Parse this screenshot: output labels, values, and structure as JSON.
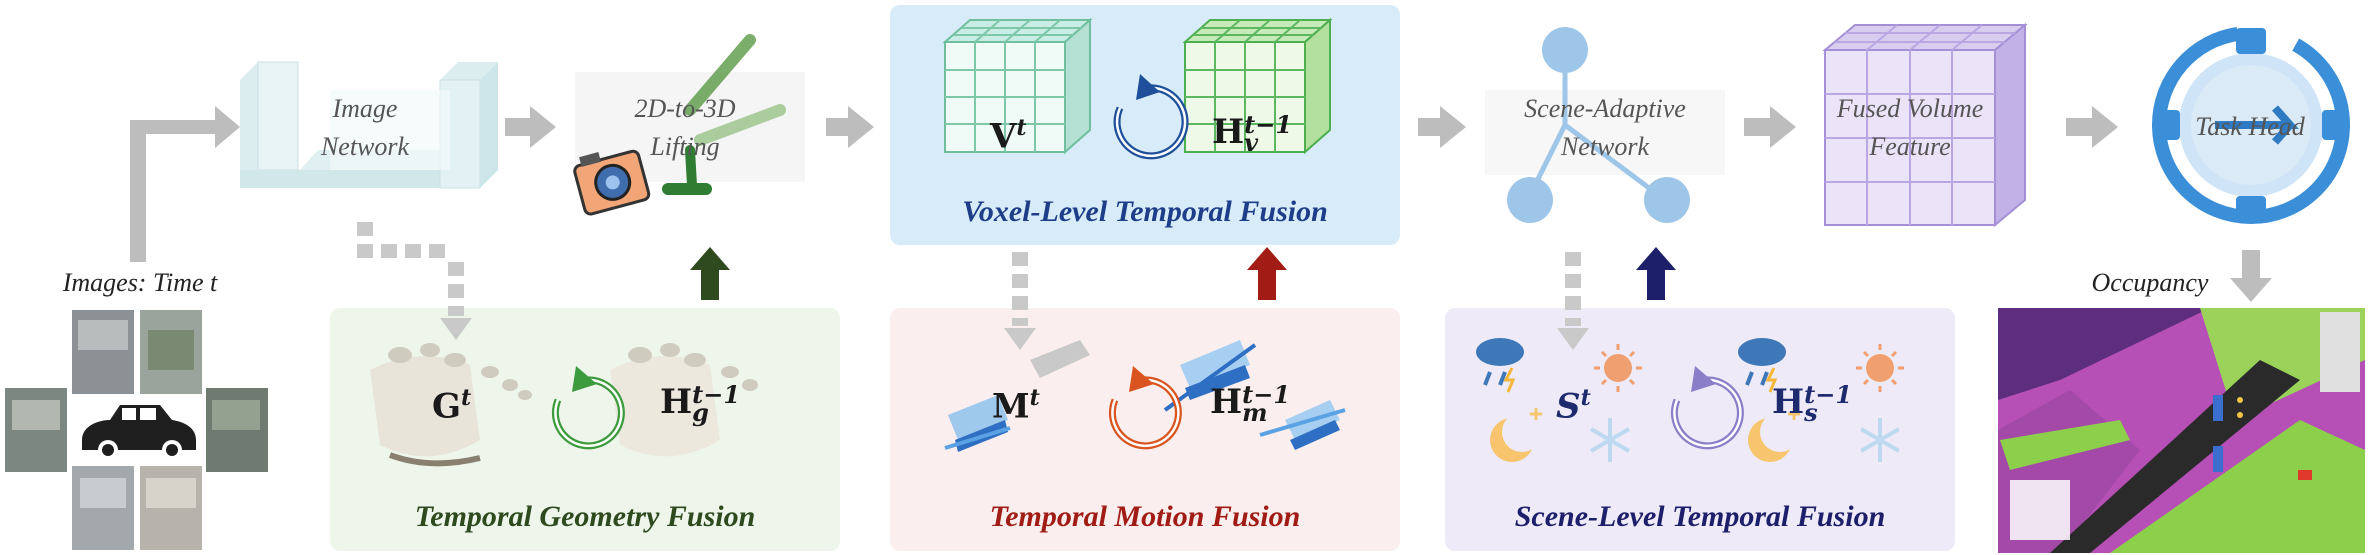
{
  "stages": {
    "image_network": "Image\nNetwork",
    "lifting": "2D-to-3D\nLifting",
    "scene_adaptive": "Scene-Adaptive\nNetwork",
    "fused_volume": "Fused Volume\nFeature",
    "task_head": "Task Head"
  },
  "inputs": {
    "images_label": "Images: Time t"
  },
  "outputs": {
    "occupancy_label": "Occupancy"
  },
  "panels": {
    "voxel": {
      "title": "Voxel-Level Temporal Fusion",
      "current": "V",
      "current_sup": "t",
      "history": "H",
      "history_sub": "v",
      "history_sup": "t−1"
    },
    "geometry": {
      "title": "Temporal Geometry Fusion",
      "current": "G",
      "current_sup": "t",
      "history": "H",
      "history_sub": "g",
      "history_sup": "t−1"
    },
    "motion": {
      "title": "Temporal Motion Fusion",
      "current": "M",
      "current_sup": "t",
      "history": "H",
      "history_sub": "m",
      "history_sup": "t−1"
    },
    "scene": {
      "title": "Scene-Level Temporal Fusion",
      "current": "S",
      "current_sup": "t",
      "history": "H",
      "history_sub": "s",
      "history_sup": "t−1"
    }
  },
  "colors": {
    "geometry_arrow": "#2f4a1e",
    "motion_arrow": "#a01c14",
    "scene_arrow": "#1e1f6b",
    "voxel_panel": "#dbeef8",
    "geometry_panel": "#eef6ec",
    "motion_panel": "#fbeeee",
    "scene_panel": "#eeeaf7"
  }
}
